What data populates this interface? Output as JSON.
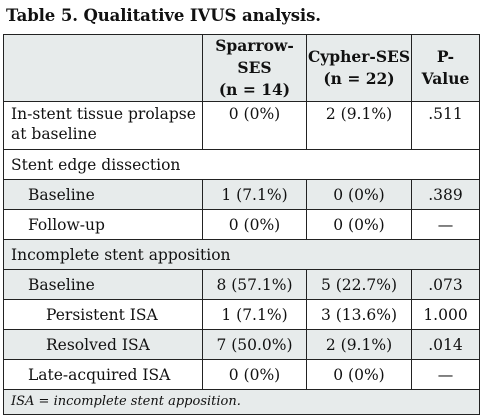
{
  "caption": "Table 5. Qualitative IVUS analysis.",
  "header": {
    "col1_line1": "Sparrow-SES",
    "col1_line2": "(n = 14)",
    "col2_line1": "Cypher-SES",
    "col2_line2": "(n = 22)",
    "col3_line1": "P-",
    "col3_line2": "Value"
  },
  "rows": {
    "prolapse": {
      "label_line1": "In-stent tissue prolapse",
      "label_line2": "at baseline",
      "sparrow": "0 (0%)",
      "cypher": "2 (9.1%)",
      "p": ".511"
    },
    "edge_section": "Stent edge dissection",
    "edge_baseline": {
      "label": "Baseline",
      "sparrow": "1 (7.1%)",
      "cypher": "0 (0%)",
      "p": ".389"
    },
    "edge_followup": {
      "label": "Follow-up",
      "sparrow": "0 (0%)",
      "cypher": "0 (0%)",
      "p": "—"
    },
    "isa_section": "Incomplete stent apposition",
    "isa_baseline": {
      "label": "Baseline",
      "sparrow": "8 (57.1%)",
      "cypher": "5 (22.7%)",
      "p": ".073"
    },
    "isa_persistent": {
      "label": "Persistent ISA",
      "sparrow": "1 (7.1%)",
      "cypher": "3 (13.6%)",
      "p": "1.000"
    },
    "isa_resolved": {
      "label": "Resolved ISA",
      "sparrow": "7 (50.0%)",
      "cypher": "2 (9.1%)",
      "p": ".014"
    },
    "isa_late": {
      "label": "Late-acquired ISA",
      "sparrow": "0 (0%)",
      "cypher": "0 (0%)",
      "p": "—"
    }
  },
  "footnote": "ISA = incomplete stent apposition.",
  "colors": {
    "shade": "#e7ebeb",
    "border": "#222222"
  }
}
